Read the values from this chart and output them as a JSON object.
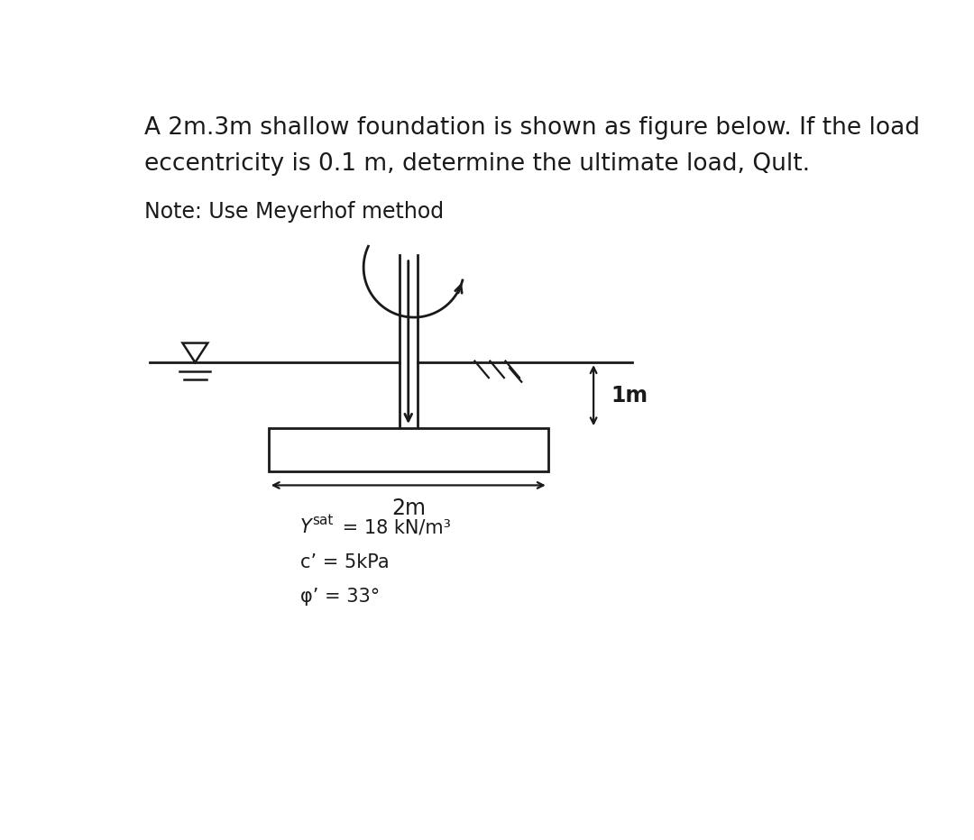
{
  "title_line1": "A 2m.3m shallow foundation is shown as figure below. If the load",
  "title_line2": "eccentricity is 0.1 m, determine the ultimate load, Qult.",
  "note": "Note: Use Meyerhof method",
  "dim_width": "2m",
  "dim_depth": "1m",
  "ysat_label": "Y",
  "ysat_sub": "sat",
  "ysat_val": " = 18 kN/m³",
  "c_label": "c’ = 5kPa",
  "phi_label": "φ’ = 33°",
  "bg_color": "#ffffff",
  "text_color": "#1a1a1a",
  "line_color": "#1a1a1a",
  "title_fontsize": 19,
  "note_fontsize": 17,
  "param_fontsize": 15,
  "fig_width": 10.8,
  "fig_height": 9.32
}
